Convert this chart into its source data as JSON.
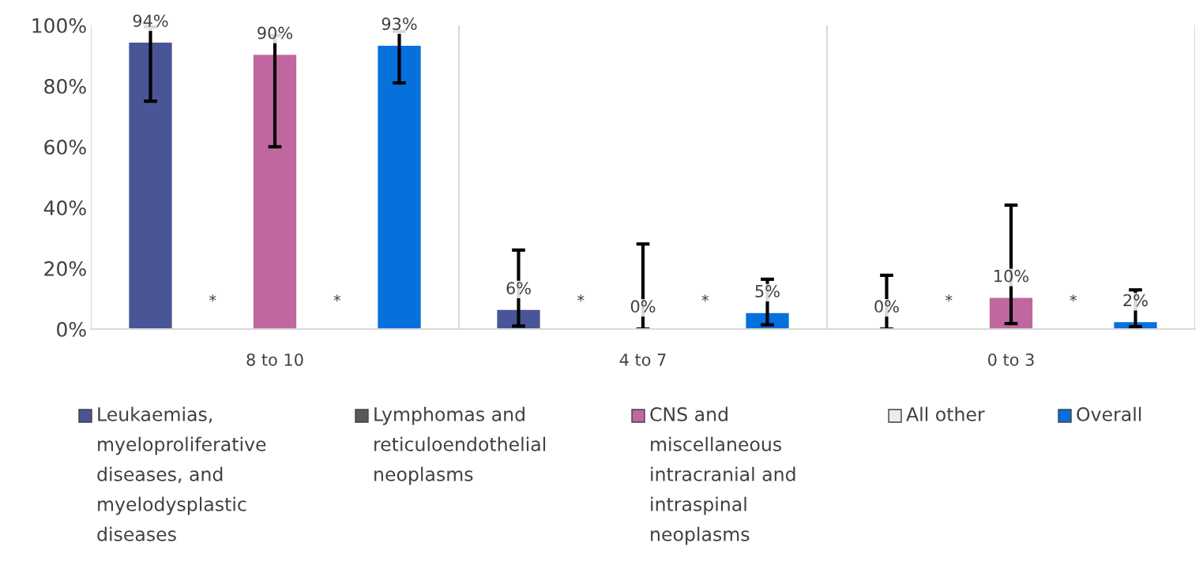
{
  "chart_data": {
    "type": "bar",
    "categories": [
      "8 to 10",
      "4 to 7",
      "0 to 3"
    ],
    "series": [
      {
        "name": "Leukaemias, myeloproliferative diseases, and myelodysplastic diseases",
        "color": "#4a5597",
        "values": [
          94,
          6,
          0
        ],
        "errors": [
          [
            75,
            99.5
          ],
          [
            1,
            26
          ],
          [
            0,
            17.7
          ]
        ],
        "value_labels": [
          "94%",
          "6%",
          "0%"
        ]
      },
      {
        "name": "Lymphomas and reticuloendothelial neoplasms",
        "color": "#595959",
        "values": [
          null,
          null,
          null
        ],
        "value_labels": [
          "*",
          "*",
          "*"
        ]
      },
      {
        "name": "CNS and miscellaneous intracranial and intraspinal neoplasms",
        "color": "#c0679f",
        "values": [
          90,
          0,
          10
        ],
        "errors": [
          [
            60,
            96.6
          ],
          [
            0,
            28
          ],
          [
            1.8,
            40.8
          ]
        ],
        "value_labels": [
          "90%",
          "0%",
          "10%"
        ]
      },
      {
        "name": "All other",
        "color": "#e8ecec",
        "values": [
          null,
          null,
          null
        ],
        "value_labels": [
          "*",
          "*",
          "*"
        ]
      },
      {
        "name": "Overall",
        "color": "#0670dd",
        "values": [
          93,
          5,
          2
        ],
        "errors": [
          [
            81,
            98
          ],
          [
            1.4,
            16.4
          ],
          [
            0.8,
            12.9
          ]
        ],
        "value_labels": [
          "93%",
          "5%",
          "2%"
        ]
      }
    ],
    "ylim": [
      0,
      100
    ],
    "yticks": [
      {
        "value": 0,
        "label": "0%"
      },
      {
        "value": 20,
        "label": "20%"
      },
      {
        "value": 40,
        "label": "40%"
      },
      {
        "value": 60,
        "label": "60%"
      },
      {
        "value": 80,
        "label": "80%"
      },
      {
        "value": 100,
        "label": "100%"
      }
    ],
    "grid": "x",
    "legend": "bottom"
  }
}
